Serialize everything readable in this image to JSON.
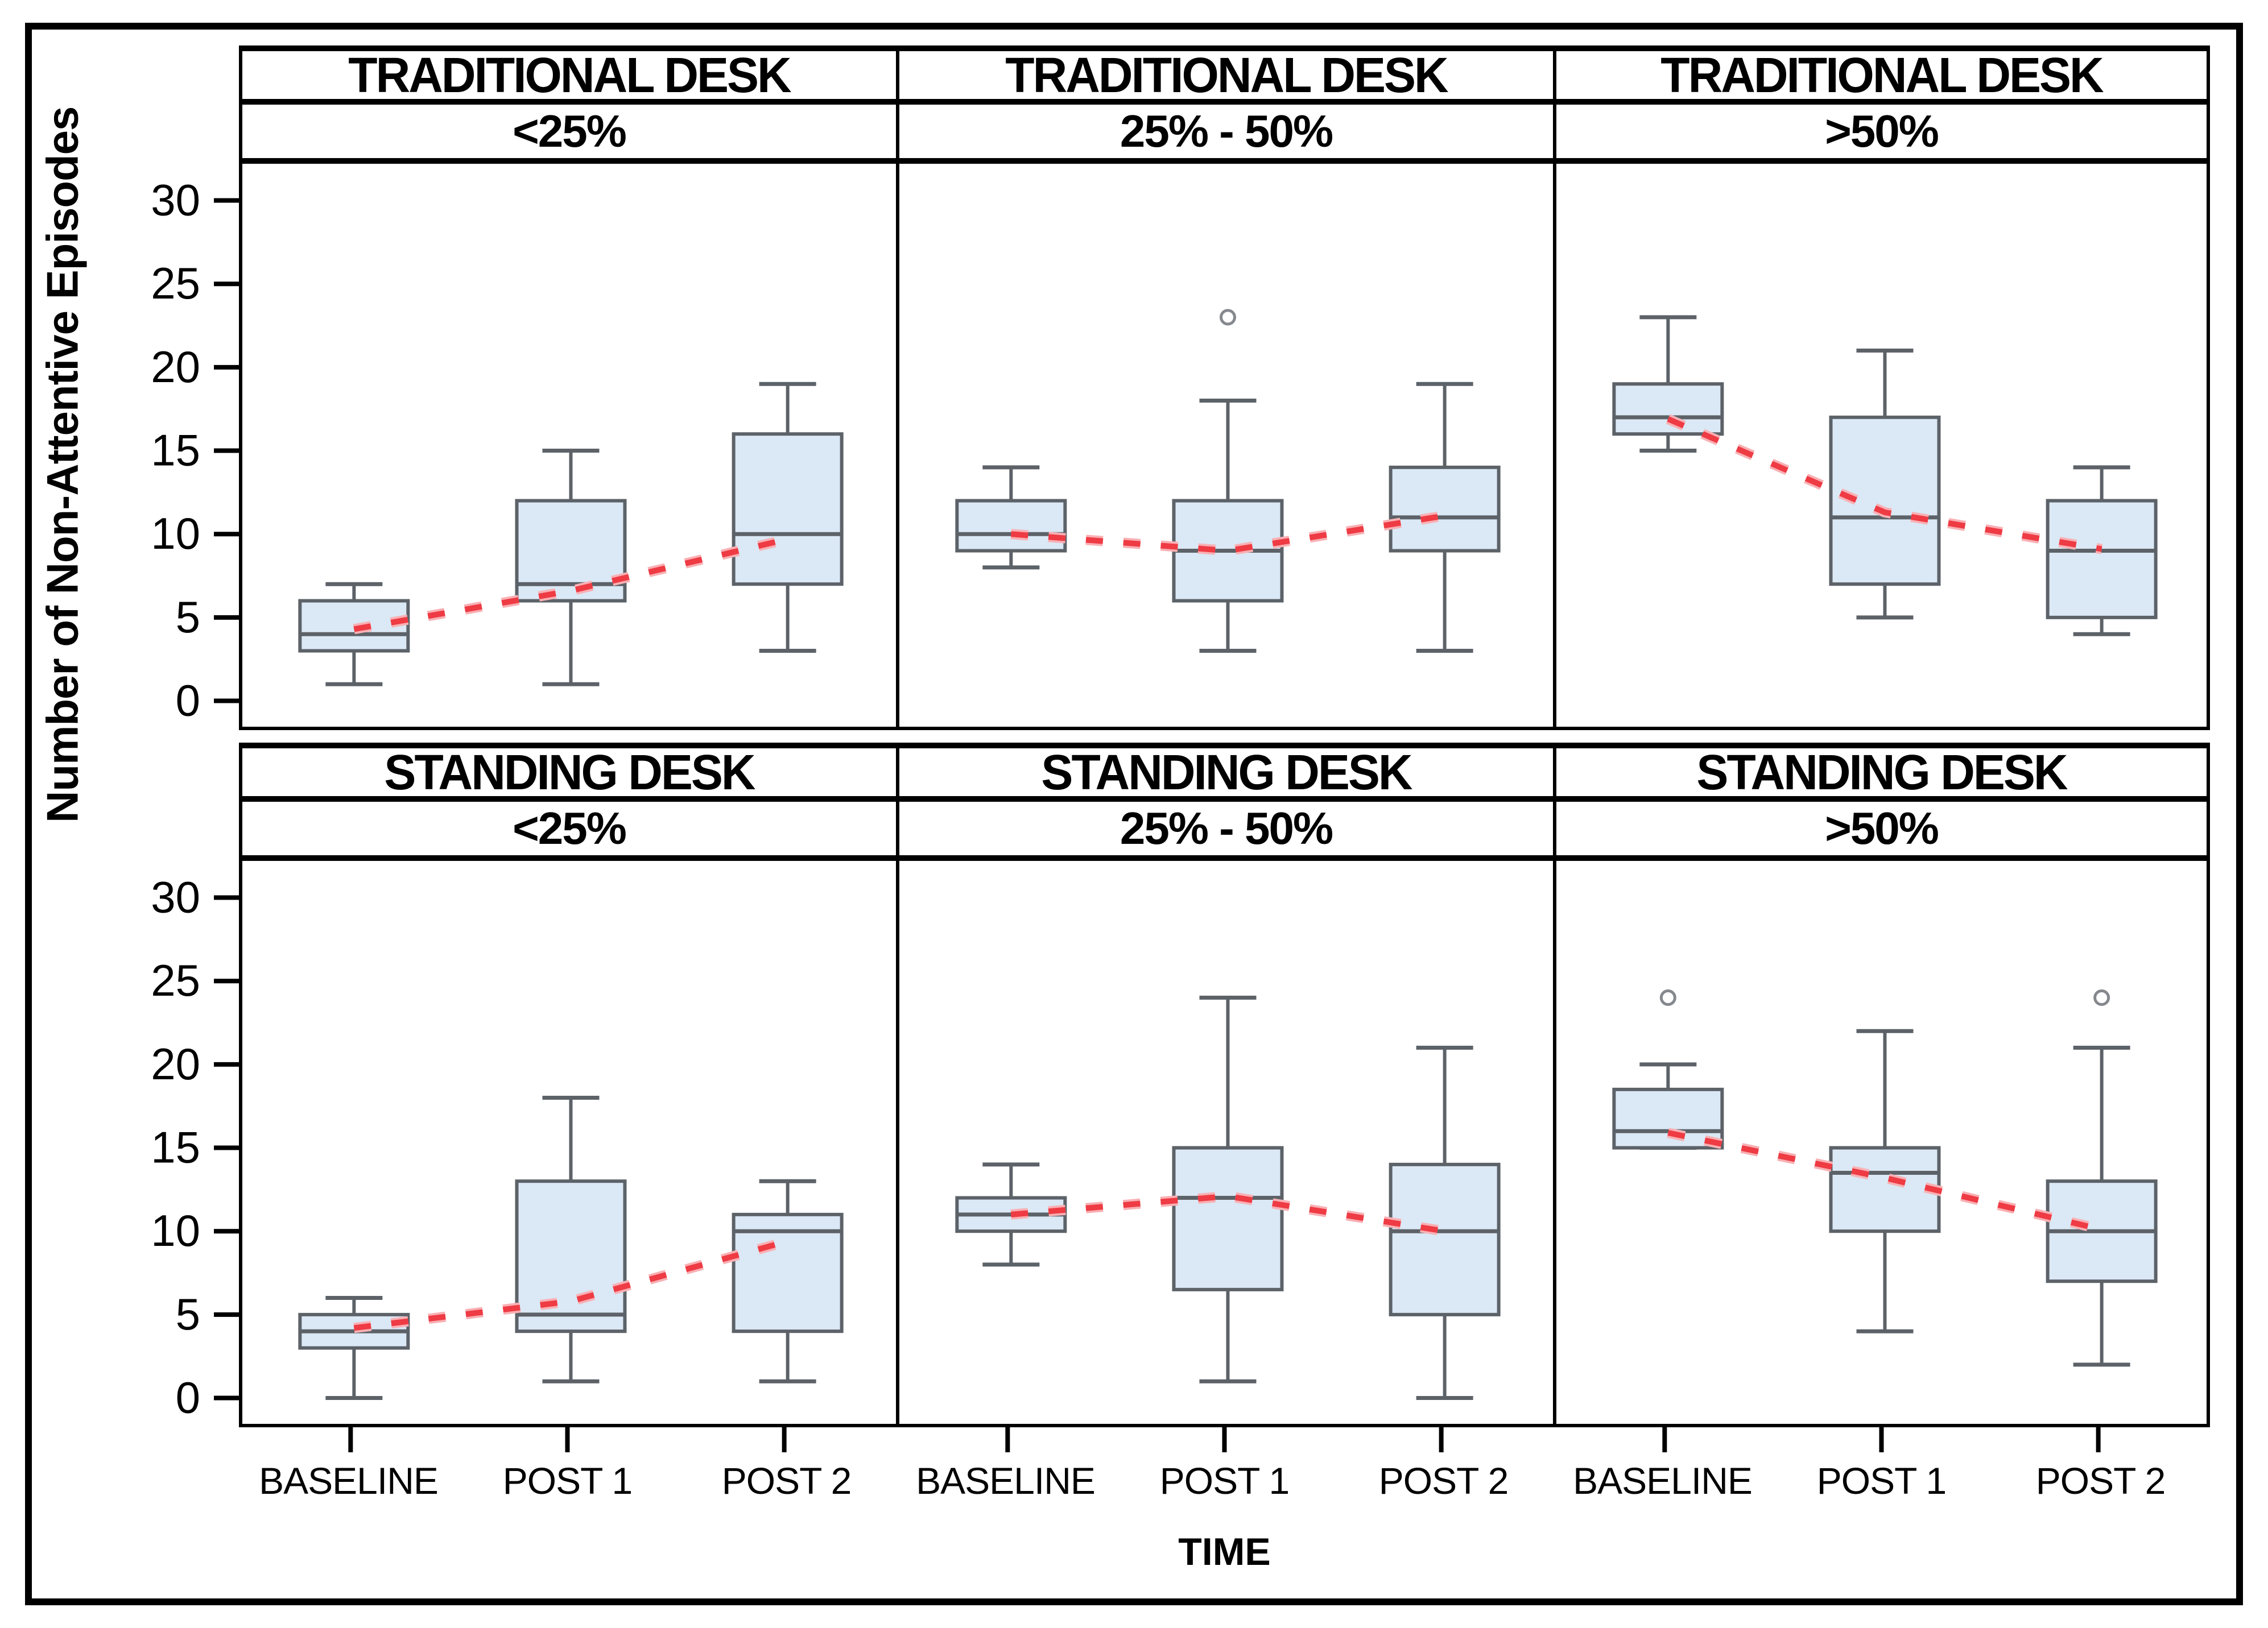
{
  "figure": {
    "x_axis_title": "TIME",
    "y_axis_title": "Number of Non-Attentive Episodes"
  },
  "chart_data": {
    "type": "box",
    "title": "",
    "xlabel": "TIME",
    "ylabel": "Number of Non-Attentive Episodes",
    "facet_rows": [
      "TRADITIONAL DESK",
      "STANDING DESK"
    ],
    "facet_cols": [
      "<25%",
      "25% - 50%",
      ">50%"
    ],
    "categories": [
      "BASELINE",
      "POST 1",
      "POST 2"
    ],
    "yticks": [
      0,
      5,
      10,
      15,
      20,
      25,
      30
    ],
    "ylim": [
      -1.55,
      32.2
    ],
    "grid": "off",
    "legend": "none",
    "mean_line_style": "dashed",
    "panels": [
      {
        "row": "TRADITIONAL DESK",
        "col": "<25%",
        "boxes": [
          {
            "category": "BASELINE",
            "min": 1,
            "q1": 3,
            "median": 4,
            "q3": 6,
            "max": 7,
            "mean": 4.3,
            "outliers": []
          },
          {
            "category": "POST 1",
            "min": 1,
            "q1": 6,
            "median": 7,
            "q3": 12,
            "max": 15,
            "mean": 6.6,
            "outliers": []
          },
          {
            "category": "POST 2",
            "min": 3,
            "q1": 7,
            "median": 10,
            "q3": 16,
            "max": 19,
            "mean": 9.7,
            "outliers": []
          }
        ]
      },
      {
        "row": "TRADITIONAL DESK",
        "col": "25% - 50%",
        "boxes": [
          {
            "category": "BASELINE",
            "min": 8,
            "q1": 9,
            "median": 10,
            "q3": 12,
            "max": 14,
            "mean": 10.0,
            "outliers": []
          },
          {
            "category": "POST 1",
            "min": 3,
            "q1": 6,
            "median": 9,
            "q3": 12,
            "max": 18,
            "mean": 9.0,
            "outliers": [
              23
            ]
          },
          {
            "category": "POST 2",
            "min": 3,
            "q1": 9,
            "median": 11,
            "q3": 14,
            "max": 19,
            "mean": 11.1,
            "outliers": []
          }
        ]
      },
      {
        "row": "TRADITIONAL DESK",
        "col": ">50%",
        "boxes": [
          {
            "category": "BASELINE",
            "min": 15,
            "q1": 16,
            "median": 17,
            "q3": 19,
            "max": 23,
            "mean": 16.9,
            "outliers": []
          },
          {
            "category": "POST 1",
            "min": 5,
            "q1": 7,
            "median": 11,
            "q3": 17,
            "max": 21,
            "mean": 11.3,
            "outliers": []
          },
          {
            "category": "POST 2",
            "min": 4,
            "q1": 5,
            "median": 9,
            "q3": 12,
            "max": 14,
            "mean": 9.1,
            "outliers": []
          }
        ]
      },
      {
        "row": "STANDING DESK",
        "col": "<25%",
        "boxes": [
          {
            "category": "BASELINE",
            "min": 0,
            "q1": 3,
            "median": 4,
            "q3": 5,
            "max": 6,
            "mean": 4.2,
            "outliers": []
          },
          {
            "category": "POST 1",
            "min": 1,
            "q1": 4,
            "median": 5,
            "q3": 13,
            "max": 18,
            "mean": 5.8,
            "outliers": []
          },
          {
            "category": "POST 2",
            "min": 1,
            "q1": 4,
            "median": 10,
            "q3": 11,
            "max": 13,
            "mean": 9.4,
            "outliers": []
          }
        ]
      },
      {
        "row": "STANDING DESK",
        "col": "25% - 50%",
        "boxes": [
          {
            "category": "BASELINE",
            "min": 8,
            "q1": 10,
            "median": 11,
            "q3": 12,
            "max": 14,
            "mean": 11.0,
            "outliers": []
          },
          {
            "category": "POST 1",
            "min": 1,
            "q1": 6.5,
            "median": 12,
            "q3": 15,
            "max": 24,
            "mean": 12.1,
            "outliers": []
          },
          {
            "category": "POST 2",
            "min": 0,
            "q1": 5,
            "median": 10,
            "q3": 14,
            "max": 21,
            "mean": 10.0,
            "outliers": []
          }
        ]
      },
      {
        "row": "STANDING DESK",
        "col": ">50%",
        "boxes": [
          {
            "category": "BASELINE",
            "min": 15,
            "q1": 15,
            "median": 16,
            "q3": 18.5,
            "max": 20,
            "mean": 15.9,
            "outliers": [
              24
            ]
          },
          {
            "category": "POST 1",
            "min": 4,
            "q1": 10,
            "median": 13.5,
            "q3": 15,
            "max": 22,
            "mean": 13.2,
            "outliers": []
          },
          {
            "category": "POST 2",
            "min": 2,
            "q1": 7,
            "median": 10,
            "q3": 13,
            "max": 21,
            "mean": 10.1,
            "outliers": [
              24
            ]
          }
        ]
      }
    ],
    "colors": {
      "box_fill": "#dbe8f5",
      "box_stroke": "#5c6268",
      "whisker": "#5c6268",
      "median": "#5c6268",
      "mean_line": "#ee3b44",
      "mean_line_halo": "#f9b0b4",
      "outlier_stroke": "#85898d",
      "axis": "#000000",
      "header_text": "#000000",
      "background": "#ffffff"
    }
  }
}
